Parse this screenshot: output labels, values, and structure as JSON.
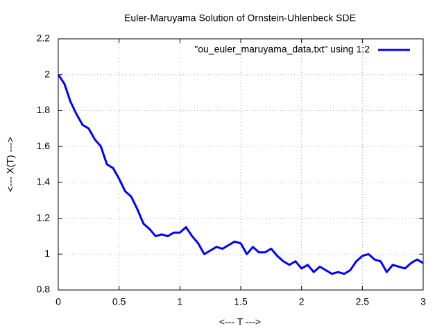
{
  "chart_data": {
    "type": "line",
    "title": "Euler-Maruyama Solution of Ornstein-Uhlenbeck SDE",
    "x_label": "<--- T --->",
    "y_label": "<--- X(T) --->",
    "x": [
      0,
      0.05,
      0.1,
      0.15,
      0.2,
      0.25,
      0.3,
      0.35,
      0.4,
      0.45,
      0.5,
      0.55,
      0.6,
      0.65,
      0.7,
      0.75,
      0.8,
      0.85,
      0.9,
      0.95,
      1,
      1.05,
      1.1,
      1.15,
      1.2,
      1.25,
      1.3,
      1.35,
      1.4,
      1.45,
      1.5,
      1.55,
      1.6,
      1.65,
      1.7,
      1.75,
      1.8,
      1.85,
      1.9,
      1.95,
      2,
      2.05,
      2.1,
      2.15,
      2.2,
      2.25,
      2.3,
      2.35,
      2.4,
      2.45,
      2.5,
      2.55,
      2.6,
      2.65,
      2.7,
      2.75,
      2.8,
      2.85,
      2.9,
      2.95,
      3
    ],
    "series": [
      {
        "name": "\"ou_euler_maruyama_data.txt\" using 1:2",
        "color": "#0000ff",
        "values": [
          2.0,
          1.95,
          1.85,
          1.78,
          1.72,
          1.7,
          1.64,
          1.6,
          1.5,
          1.48,
          1.42,
          1.35,
          1.32,
          1.25,
          1.17,
          1.14,
          1.1,
          1.11,
          1.1,
          1.12,
          1.12,
          1.15,
          1.1,
          1.06,
          1.0,
          1.02,
          1.04,
          1.03,
          1.05,
          1.07,
          1.06,
          1.0,
          1.04,
          1.01,
          1.01,
          1.03,
          0.99,
          0.96,
          0.94,
          0.96,
          0.92,
          0.94,
          0.9,
          0.93,
          0.91,
          0.89,
          0.9,
          0.89,
          0.91,
          0.96,
          0.99,
          1.0,
          0.97,
          0.96,
          0.9,
          0.94,
          0.93,
          0.92,
          0.95,
          0.97,
          0.95
        ]
      }
    ],
    "xlim": [
      0,
      3
    ],
    "xticks": [
      0,
      0.5,
      1,
      1.5,
      2,
      2.5,
      3
    ],
    "ylim": [
      0.8,
      2.2
    ],
    "yticks": [
      0.8,
      1,
      1.2,
      1.4,
      1.6,
      1.8,
      2,
      2.2
    ],
    "grid": true,
    "legend": "top-right"
  }
}
